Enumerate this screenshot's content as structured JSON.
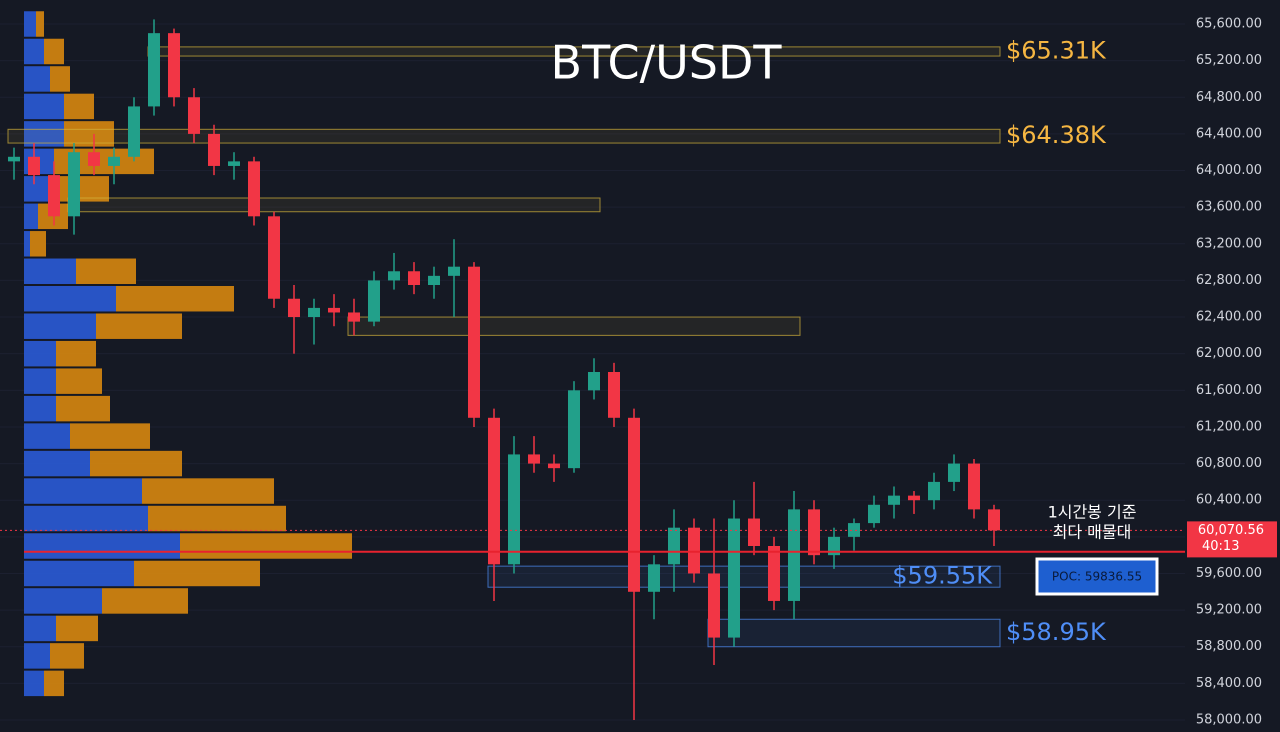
{
  "chart_data": {
    "type": "candlestick",
    "title": "BTC/USDT",
    "open": [
      64100,
      64150,
      63950,
      63500,
      64200,
      64050,
      64150,
      64700,
      65500,
      64800,
      64400,
      64050,
      64100,
      63500,
      62600,
      62400,
      62500,
      62450,
      62350,
      62800,
      62900,
      62750,
      62850,
      62950,
      61300,
      59700,
      60900,
      60800,
      60750,
      61600,
      61800,
      61300,
      59400,
      59700,
      60100,
      59600,
      58900,
      60200,
      59900,
      59300,
      60300,
      59800,
      60000,
      60150,
      60350,
      60450,
      60400,
      60600,
      60800,
      60300
    ],
    "high": [
      64250,
      64300,
      64100,
      64300,
      64400,
      64250,
      64800,
      65650,
      65550,
      64900,
      64500,
      64200,
      64150,
      63550,
      62750,
      62600,
      62650,
      62600,
      62900,
      63100,
      63000,
      62950,
      63250,
      63000,
      61400,
      61100,
      61100,
      60900,
      61700,
      61950,
      61900,
      61400,
      59800,
      60300,
      60200,
      60200,
      60400,
      60600,
      60000,
      60500,
      60400,
      60100,
      60200,
      60450,
      60550,
      60500,
      60700,
      60900,
      60850,
      60350
    ],
    "low": [
      63900,
      63850,
      63400,
      63300,
      63950,
      63850,
      64100,
      64600,
      64700,
      64300,
      63950,
      63900,
      63400,
      62500,
      62000,
      62100,
      62300,
      62200,
      62300,
      62700,
      62650,
      62600,
      62400,
      61200,
      59300,
      59600,
      60700,
      60600,
      60700,
      61500,
      61200,
      58000,
      59100,
      59400,
      59500,
      58600,
      58800,
      59800,
      59200,
      59100,
      59700,
      59650,
      59850,
      60100,
      60200,
      60250,
      60300,
      60500,
      60200,
      59900
    ],
    "close": [
      64150,
      63950,
      63500,
      64200,
      64050,
      64150,
      64700,
      65500,
      64800,
      64400,
      64050,
      64100,
      63500,
      62600,
      62400,
      62500,
      62450,
      62350,
      62800,
      62900,
      62750,
      62850,
      62950,
      61300,
      59700,
      60900,
      60800,
      60750,
      61600,
      61800,
      61300,
      59400,
      59700,
      60100,
      59600,
      58900,
      60200,
      59900,
      59300,
      60300,
      59800,
      60000,
      60150,
      60350,
      60450,
      60400,
      60600,
      60800,
      60300,
      60070.56
    ],
    "up_color": "#22a08a",
    "down_color": "#f23645",
    "ylim": [
      58000,
      65600
    ],
    "yticks": [
      {
        "value": 58000,
        "label": "58,000.00"
      },
      {
        "value": 58400,
        "label": "58,400.00"
      },
      {
        "value": 58800,
        "label": "58,800.00"
      },
      {
        "value": 59200,
        "label": "59,200.00"
      },
      {
        "value": 59600,
        "label": "59,600.00"
      },
      {
        "value": 60000,
        "label": "60,000.00"
      },
      {
        "value": 60400,
        "label": "60,400.00"
      },
      {
        "value": 60800,
        "label": "60,800.00"
      },
      {
        "value": 61200,
        "label": "61,200.00"
      },
      {
        "value": 61600,
        "label": "61,600.00"
      },
      {
        "value": 62000,
        "label": "62,000.00"
      },
      {
        "value": 62400,
        "label": "62,400.00"
      },
      {
        "value": 62800,
        "label": "62,800.00"
      },
      {
        "value": 63200,
        "label": "63,200.00"
      },
      {
        "value": 63600,
        "label": "63,600.00"
      },
      {
        "value": 64000,
        "label": "64,000.00"
      },
      {
        "value": 64400,
        "label": "64,400.00"
      },
      {
        "value": 64800,
        "label": "64,800.00"
      },
      {
        "value": 65200,
        "label": "65,200.00"
      },
      {
        "value": 65600,
        "label": "65,600.00"
      }
    ],
    "volume_profile": {
      "prices": [
        65600,
        65300,
        65000,
        64700,
        64400,
        64100,
        63800,
        63500,
        63200,
        62900,
        62600,
        62300,
        62000,
        61700,
        61400,
        61100,
        60800,
        60500,
        60200,
        59900,
        59600,
        59300,
        59000,
        58700,
        58400
      ],
      "buy": [
        12,
        20,
        26,
        40,
        40,
        30,
        30,
        14,
        6,
        52,
        92,
        72,
        32,
        32,
        32,
        46,
        66,
        118,
        124,
        156,
        110,
        78,
        32,
        26,
        20
      ],
      "sell": [
        8,
        20,
        20,
        30,
        50,
        100,
        55,
        30,
        16,
        60,
        118,
        86,
        40,
        46,
        54,
        80,
        92,
        132,
        138,
        172,
        126,
        86,
        42,
        34,
        20
      ],
      "buy_color": "#2a5bd7",
      "sell_color": "#d7870f"
    },
    "zones": [
      {
        "low": 65250,
        "high": 65350,
        "start": 7,
        "end": 49,
        "label": "$65.31K",
        "color": "#d4b43a"
      },
      {
        "low": 64300,
        "high": 64450,
        "start": 0,
        "end": 49,
        "label": "$64.38K",
        "color": "#d4b43a"
      },
      {
        "low": 63550,
        "high": 63700,
        "start": 3,
        "end": 29,
        "color": "#d4b43a"
      },
      {
        "low": 62200,
        "high": 62400,
        "start": 17,
        "end": 39,
        "color": "#d4b43a"
      },
      {
        "low": 59450,
        "high": 59680,
        "start": 24,
        "end": 49,
        "label": "$59.55K",
        "color": "#4f8ef7"
      },
      {
        "low": 58800,
        "high": 59100,
        "start": 35,
        "end": 49,
        "label": "$58.95K",
        "color": "#4f8ef7"
      }
    ],
    "current_price": {
      "value": 60070.56,
      "label": "60,070.56",
      "timer": "40:13"
    },
    "poc": {
      "value": 59836.55,
      "label": "POC: 59836.55"
    },
    "annotation": [
      "1시간봉 기준",
      "최다 매물대"
    ]
  }
}
